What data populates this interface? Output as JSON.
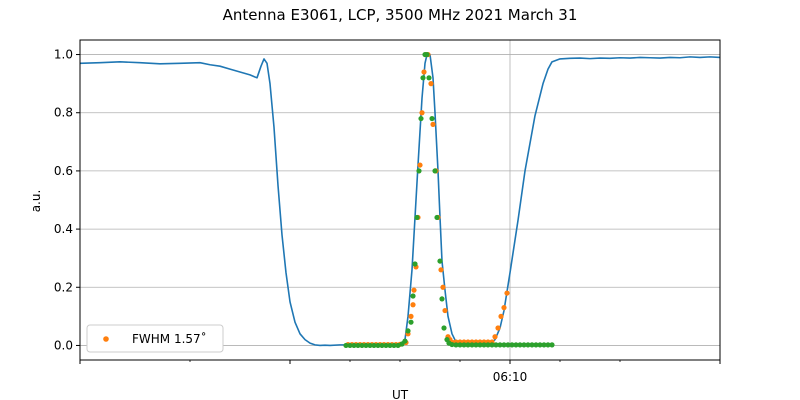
{
  "chart_data": {
    "type": "line",
    "title": "Antenna E3061, LCP, 3500 MHz 2021 March 31",
    "xlabel": "UT",
    "ylabel": "a.u.",
    "xlim": [
      -43,
      21
    ],
    "ylim": [
      -0.05,
      1.05
    ],
    "x_tick_labels": [
      {
        "x": 0,
        "label": "06:10"
      }
    ],
    "x_major_ticks": [
      -43,
      -22,
      0,
      21
    ],
    "x_minor_ticks": [
      -32,
      -16,
      -11,
      -5,
      5,
      11
    ],
    "y_ticks": [
      0.0,
      0.2,
      0.4,
      0.6,
      0.8,
      1.0
    ],
    "y_tick_labels": [
      "0.0",
      "0.2",
      "0.4",
      "0.6",
      "0.8",
      "1.0"
    ],
    "grid": true,
    "legend_position": "lower-left",
    "series": [
      {
        "kind": "line",
        "color": "#1f77b4",
        "points": [
          [
            -43,
            0.97
          ],
          [
            -41,
            0.972
          ],
          [
            -39,
            0.975
          ],
          [
            -37,
            0.972
          ],
          [
            -35,
            0.968
          ],
          [
            -33,
            0.97
          ],
          [
            -31,
            0.972
          ],
          [
            -30,
            0.965
          ],
          [
            -29,
            0.96
          ],
          [
            -28,
            0.95
          ],
          [
            -27,
            0.94
          ],
          [
            -26,
            0.93
          ],
          [
            -25.3,
            0.92
          ],
          [
            -24.9,
            0.96
          ],
          [
            -24.6,
            0.985
          ],
          [
            -24.3,
            0.97
          ],
          [
            -24,
            0.9
          ],
          [
            -23.6,
            0.75
          ],
          [
            -23.2,
            0.55
          ],
          [
            -22.8,
            0.38
          ],
          [
            -22.4,
            0.25
          ],
          [
            -22,
            0.15
          ],
          [
            -21.5,
            0.08
          ],
          [
            -21,
            0.04
          ],
          [
            -20.5,
            0.02
          ],
          [
            -20,
            0.008
          ],
          [
            -19.5,
            0.002
          ],
          [
            -19,
            0.0
          ],
          [
            -18.5,
            0.001
          ],
          [
            -18,
            0.0
          ],
          [
            -17,
            0.002
          ],
          [
            -16,
            0.002
          ],
          [
            -15,
            0.002
          ],
          [
            -14,
            0.002
          ],
          [
            -13,
            0.002
          ],
          [
            -12,
            0.003
          ],
          [
            -11,
            0.004
          ],
          [
            -10.5,
            0.02
          ],
          [
            -10.2,
            0.1
          ],
          [
            -9.8,
            0.26
          ],
          [
            -9.4,
            0.5
          ],
          [
            -9.2,
            0.62
          ],
          [
            -8.8,
            0.85
          ],
          [
            -8.5,
            0.97
          ],
          [
            -8.3,
            1.0
          ],
          [
            -8.0,
            1.0
          ],
          [
            -7.7,
            0.92
          ],
          [
            -7.5,
            0.8
          ],
          [
            -7.2,
            0.6
          ],
          [
            -7.0,
            0.44
          ],
          [
            -6.8,
            0.29
          ],
          [
            -6.5,
            0.19
          ],
          [
            -6.2,
            0.1
          ],
          [
            -5.8,
            0.04
          ],
          [
            -5.4,
            0.012
          ],
          [
            -5,
            0.005
          ],
          [
            -4,
            0.005
          ],
          [
            -3,
            0.005
          ],
          [
            -2,
            0.006
          ],
          [
            -1.5,
            0.02
          ],
          [
            -1.0,
            0.06
          ],
          [
            -0.6,
            0.12
          ],
          [
            0,
            0.25
          ],
          [
            0.8,
            0.43
          ],
          [
            1.5,
            0.6
          ],
          [
            2.5,
            0.79
          ],
          [
            3.3,
            0.9
          ],
          [
            3.8,
            0.95
          ],
          [
            4.2,
            0.975
          ],
          [
            5,
            0.985
          ],
          [
            6,
            0.987
          ],
          [
            7,
            0.988
          ],
          [
            8,
            0.986
          ],
          [
            9,
            0.988
          ],
          [
            10,
            0.987
          ],
          [
            11,
            0.989
          ],
          [
            12,
            0.988
          ],
          [
            13,
            0.99
          ],
          [
            14,
            0.989
          ],
          [
            15,
            0.988
          ],
          [
            16,
            0.99
          ],
          [
            17,
            0.989
          ],
          [
            18,
            0.992
          ],
          [
            19,
            0.99
          ],
          [
            20,
            0.992
          ],
          [
            21,
            0.99
          ]
        ]
      },
      {
        "kind": "scatter",
        "name": "FWHM 1.57˚",
        "color": "#ff7f0e",
        "points": [
          [
            -16.2,
            0.003
          ],
          [
            -15.8,
            0.003
          ],
          [
            -15.4,
            0.003
          ],
          [
            -15.0,
            0.003
          ],
          [
            -14.6,
            0.003
          ],
          [
            -14.2,
            0.003
          ],
          [
            -13.8,
            0.003
          ],
          [
            -13.4,
            0.003
          ],
          [
            -13.0,
            0.003
          ],
          [
            -12.6,
            0.003
          ],
          [
            -12.2,
            0.003
          ],
          [
            -11.8,
            0.003
          ],
          [
            -11.4,
            0.003
          ],
          [
            -11.0,
            0.004
          ],
          [
            -10.4,
            0.01
          ],
          [
            -10.2,
            0.04
          ],
          [
            -9.9,
            0.1
          ],
          [
            -9.7,
            0.14
          ],
          [
            -9.6,
            0.19
          ],
          [
            -9.4,
            0.27
          ],
          [
            -9.2,
            0.44
          ],
          [
            -9.0,
            0.62
          ],
          [
            -8.8,
            0.8
          ],
          [
            -8.6,
            0.94
          ],
          [
            -8.4,
            1.0
          ],
          [
            -8.2,
            1.0
          ],
          [
            -7.9,
            0.9
          ],
          [
            -7.7,
            0.76
          ],
          [
            -7.4,
            0.6
          ],
          [
            -7.2,
            0.44
          ],
          [
            -6.9,
            0.26
          ],
          [
            -6.7,
            0.2
          ],
          [
            -6.5,
            0.12
          ],
          [
            -6.2,
            0.03
          ],
          [
            -6.0,
            0.02
          ],
          [
            -5.7,
            0.01
          ],
          [
            -5.4,
            0.012
          ],
          [
            -5.0,
            0.012
          ],
          [
            -4.6,
            0.012
          ],
          [
            -4.2,
            0.012
          ],
          [
            -3.8,
            0.012
          ],
          [
            -3.4,
            0.012
          ],
          [
            -3.0,
            0.012
          ],
          [
            -2.6,
            0.012
          ],
          [
            -2.2,
            0.012
          ],
          [
            -1.8,
            0.012
          ],
          [
            -1.5,
            0.03
          ],
          [
            -1.2,
            0.06
          ],
          [
            -0.9,
            0.1
          ],
          [
            -0.6,
            0.13
          ],
          [
            -0.3,
            0.18
          ]
        ]
      },
      {
        "kind": "scatter",
        "color": "#2ca02c",
        "points": [
          [
            -16.4,
            0.0
          ],
          [
            -16.0,
            0.0
          ],
          [
            -15.6,
            0.0
          ],
          [
            -15.2,
            0.0
          ],
          [
            -14.8,
            0.0
          ],
          [
            -14.4,
            0.0
          ],
          [
            -14.0,
            0.0
          ],
          [
            -13.6,
            0.0
          ],
          [
            -13.2,
            0.0
          ],
          [
            -12.8,
            0.0
          ],
          [
            -12.4,
            0.0
          ],
          [
            -12.0,
            0.0
          ],
          [
            -11.6,
            0.0
          ],
          [
            -11.2,
            0.0
          ],
          [
            -10.8,
            0.005
          ],
          [
            -10.5,
            0.015
          ],
          [
            -10.2,
            0.05
          ],
          [
            -9.9,
            0.08
          ],
          [
            -9.7,
            0.17
          ],
          [
            -9.5,
            0.28
          ],
          [
            -9.3,
            0.44
          ],
          [
            -9.1,
            0.6
          ],
          [
            -8.9,
            0.78
          ],
          [
            -8.7,
            0.92
          ],
          [
            -8.5,
            1.0
          ],
          [
            -8.3,
            1.0
          ],
          [
            -8.1,
            0.92
          ],
          [
            -7.8,
            0.78
          ],
          [
            -7.5,
            0.6
          ],
          [
            -7.3,
            0.44
          ],
          [
            -7.0,
            0.29
          ],
          [
            -6.8,
            0.16
          ],
          [
            -6.6,
            0.06
          ],
          [
            -6.3,
            0.02
          ],
          [
            -6.1,
            0.008
          ],
          [
            -5.8,
            0.003
          ],
          [
            -5.4,
            0.002
          ],
          [
            -5.0,
            0.002
          ],
          [
            -4.6,
            0.002
          ],
          [
            -4.2,
            0.002
          ],
          [
            -3.8,
            0.002
          ],
          [
            -3.4,
            0.002
          ],
          [
            -3.0,
            0.002
          ],
          [
            -2.6,
            0.002
          ],
          [
            -2.2,
            0.002
          ],
          [
            -1.8,
            0.002
          ],
          [
            -1.4,
            0.002
          ],
          [
            -1.0,
            0.002
          ],
          [
            -0.6,
            0.002
          ],
          [
            -0.2,
            0.002
          ],
          [
            0.2,
            0.002
          ],
          [
            0.6,
            0.002
          ],
          [
            1.0,
            0.002
          ],
          [
            1.4,
            0.002
          ],
          [
            1.8,
            0.002
          ],
          [
            2.2,
            0.002
          ],
          [
            2.6,
            0.002
          ],
          [
            3.0,
            0.002
          ],
          [
            3.4,
            0.002
          ],
          [
            3.8,
            0.002
          ],
          [
            4.2,
            0.002
          ]
        ]
      }
    ]
  }
}
